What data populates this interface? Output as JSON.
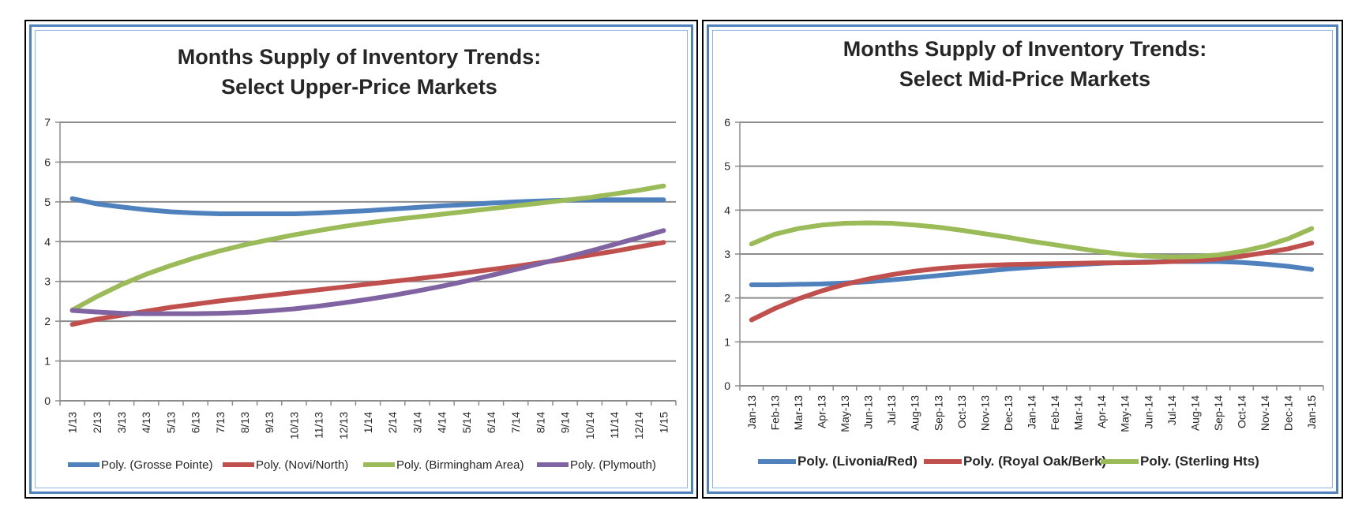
{
  "chart_data": [
    {
      "type": "line",
      "title": "Months Supply of Inventory Trends:",
      "subtitle": "Select Upper-Price Markets",
      "categories": [
        "1/13",
        "2/13",
        "3/13",
        "4/13",
        "5/13",
        "6/13",
        "7/13",
        "8/13",
        "9/13",
        "10/13",
        "11/13",
        "12/13",
        "1/14",
        "2/14",
        "3/14",
        "4/14",
        "5/14",
        "6/14",
        "7/14",
        "8/14",
        "9/14",
        "10/14",
        "11/14",
        "12/14",
        "1/15"
      ],
      "ylim": [
        0,
        7
      ],
      "yticks": [
        "0",
        "1",
        "2",
        "3",
        "4",
        "5",
        "6",
        "7"
      ],
      "grid": true,
      "legend_position": "bottom",
      "series": [
        {
          "name": "Poly. (Grosse Pointe)",
          "color": "#4f81bd",
          "values": [
            5.08,
            4.95,
            4.87,
            4.8,
            4.75,
            4.72,
            4.7,
            4.7,
            4.7,
            4.7,
            4.72,
            4.75,
            4.78,
            4.82,
            4.86,
            4.9,
            4.93,
            4.97,
            5.0,
            5.02,
            5.04,
            5.05,
            5.05,
            5.05,
            5.05
          ]
        },
        {
          "name": "Poly. (Novi/North)",
          "color": "#c0504d",
          "values": [
            1.92,
            2.05,
            2.15,
            2.25,
            2.35,
            2.43,
            2.51,
            2.58,
            2.65,
            2.72,
            2.79,
            2.86,
            2.93,
            3.0,
            3.07,
            3.14,
            3.22,
            3.3,
            3.38,
            3.47,
            3.56,
            3.66,
            3.76,
            3.87,
            3.98
          ]
        },
        {
          "name": "Poly. (Birmingham Area)",
          "color": "#9bbb59",
          "values": [
            2.28,
            2.62,
            2.92,
            3.18,
            3.4,
            3.6,
            3.77,
            3.92,
            4.05,
            4.17,
            4.28,
            4.38,
            4.47,
            4.55,
            4.62,
            4.69,
            4.76,
            4.83,
            4.9,
            4.97,
            5.04,
            5.11,
            5.2,
            5.29,
            5.4
          ]
        },
        {
          "name": "Poly. (Plymouth)",
          "color": "#8064a2",
          "values": [
            2.27,
            2.23,
            2.2,
            2.19,
            2.19,
            2.19,
            2.2,
            2.22,
            2.26,
            2.31,
            2.38,
            2.46,
            2.55,
            2.65,
            2.76,
            2.88,
            3.01,
            3.15,
            3.3,
            3.45,
            3.6,
            3.76,
            3.93,
            4.1,
            4.28
          ]
        }
      ]
    },
    {
      "type": "line",
      "title": "Months Supply of Inventory Trends:",
      "subtitle": "Select Mid-Price Markets",
      "categories": [
        "Jan-13",
        "Feb-13",
        "Mar-13",
        "Apr-13",
        "May-13",
        "Jun-13",
        "Jul-13",
        "Aug-13",
        "Sep-13",
        "Oct-13",
        "Nov-13",
        "Dec-13",
        "Jan-14",
        "Feb-14",
        "Mar-14",
        "Apr-14",
        "May-14",
        "Jun-14",
        "Jul-14",
        "Aug-14",
        "Sep-14",
        "Oct-14",
        "Nov-14",
        "Dec-14",
        "Jan-15"
      ],
      "ylim": [
        0,
        6
      ],
      "yticks": [
        "0",
        "1",
        "2",
        "3",
        "4",
        "5",
        "6"
      ],
      "grid": true,
      "legend_position": "bottom",
      "series": [
        {
          "name": "Poly. (Livonia/Red)",
          "color": "#4f81bd",
          "values": [
            2.3,
            2.3,
            2.31,
            2.32,
            2.34,
            2.37,
            2.41,
            2.46,
            2.51,
            2.56,
            2.61,
            2.66,
            2.7,
            2.73,
            2.76,
            2.79,
            2.81,
            2.82,
            2.83,
            2.83,
            2.83,
            2.81,
            2.77,
            2.72,
            2.65
          ]
        },
        {
          "name": "Poly. (Royal Oak/Berk)",
          "color": "#c0504d",
          "values": [
            1.5,
            1.76,
            1.98,
            2.16,
            2.31,
            2.43,
            2.53,
            2.61,
            2.67,
            2.71,
            2.74,
            2.76,
            2.77,
            2.78,
            2.79,
            2.8,
            2.8,
            2.81,
            2.83,
            2.85,
            2.89,
            2.95,
            3.03,
            3.12,
            3.25
          ]
        },
        {
          "name": "Poly. (Sterling Hts)",
          "color": "#9bbb59",
          "values": [
            3.23,
            3.45,
            3.58,
            3.66,
            3.7,
            3.71,
            3.7,
            3.66,
            3.61,
            3.54,
            3.46,
            3.38,
            3.29,
            3.21,
            3.13,
            3.05,
            2.99,
            2.95,
            2.93,
            2.94,
            2.98,
            3.06,
            3.18,
            3.35,
            3.58
          ]
        }
      ]
    }
  ]
}
